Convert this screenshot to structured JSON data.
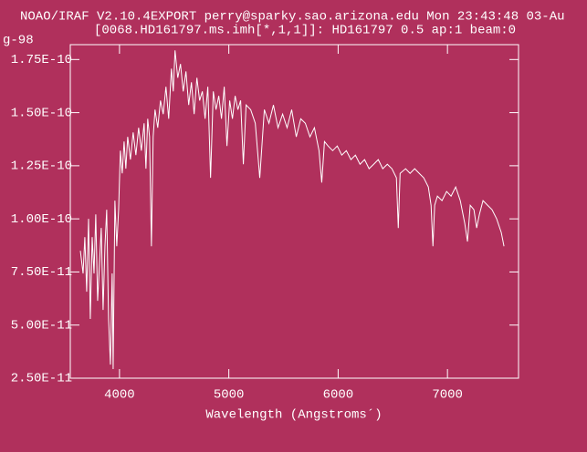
{
  "chart_data": {
    "type": "line",
    "title": "NOAO/IRAF V2.10.4EXPORT perry@sparky.sao.arizona.edu Mon 23:43:48 03-Au",
    "subtitle": "[0068.HD161797.ms.imh[*,1,1]]: HD161797 0.5 ap:1 beam:0",
    "y_label": "g-98",
    "x_label": "Wavelength (Angstroms´)",
    "color": "#ffffff",
    "background": "#b0305c",
    "xlim": [
      3550,
      7650
    ],
    "ylim": [
      2.5e-11,
      1.82e-10
    ],
    "xticks": [
      4000,
      5000,
      6000,
      7000
    ],
    "yticks": [
      {
        "value": 2.5e-11,
        "label": "2.50E-11"
      },
      {
        "value": 5e-11,
        "label": "5.00E-11"
      },
      {
        "value": 7.5e-11,
        "label": "7.50E-11"
      },
      {
        "value": 1e-10,
        "label": "1.00E-10"
      },
      {
        "value": 1.25e-10,
        "label": "1.25E-10"
      },
      {
        "value": 1.5e-10,
        "label": "1.50E-10"
      },
      {
        "value": 1.75e-10,
        "label": "1.75E-10"
      }
    ],
    "x": [
      3642,
      3667,
      3683,
      3700,
      3717,
      3733,
      3750,
      3767,
      3783,
      3800,
      3817,
      3833,
      3850,
      3867,
      3883,
      3900,
      3917,
      3933,
      3942,
      3958,
      3975,
      3992,
      4008,
      4025,
      4042,
      4058,
      4075,
      4100,
      4125,
      4150,
      4175,
      4200,
      4225,
      4242,
      4258,
      4275,
      4292,
      4308,
      4325,
      4350,
      4375,
      4400,
      4425,
      4450,
      4475,
      4492,
      4508,
      4533,
      4558,
      4583,
      4608,
      4633,
      4658,
      4683,
      4708,
      4733,
      4758,
      4783,
      4808,
      4833,
      4858,
      4883,
      4908,
      4933,
      4958,
      4983,
      5008,
      5033,
      5058,
      5083,
      5108,
      5133,
      5158,
      5200,
      5242,
      5283,
      5325,
      5367,
      5408,
      5450,
      5492,
      5533,
      5575,
      5617,
      5658,
      5700,
      5742,
      5783,
      5825,
      5850,
      5875,
      5908,
      5950,
      5992,
      6033,
      6075,
      6117,
      6158,
      6200,
      6242,
      6283,
      6325,
      6367,
      6408,
      6450,
      6492,
      6533,
      6550,
      6567,
      6617,
      6658,
      6700,
      6742,
      6783,
      6825,
      6850,
      6867,
      6883,
      6908,
      6950,
      6992,
      7033,
      7075,
      7117,
      7158,
      7183,
      7208,
      7242,
      7267,
      7292,
      7325,
      7367,
      7408,
      7450,
      7492,
      7517
    ],
    "values": [
      8.5e-11,
      7.43e-11,
      9.14e-11,
      6.57e-11,
      1e-10,
      5.29e-11,
      9.14e-11,
      7.43e-11,
      1.021e-10,
      6.14e-11,
      7.86e-11,
      9.57e-11,
      5.71e-11,
      8.71e-11,
      1.043e-10,
      5.29e-11,
      3.14e-11,
      7.43e-11,
      2.93e-11,
      1.086e-10,
      8.71e-11,
      1.043e-10,
      1.321e-10,
      1.214e-10,
      1.364e-10,
      1.236e-10,
      1.386e-10,
      1.279e-10,
      1.407e-10,
      1.3e-10,
      1.429e-10,
      1.321e-10,
      1.45e-10,
      1.236e-10,
      1.471e-10,
      1.386e-10,
      8.71e-11,
      1.386e-10,
      1.514e-10,
      1.429e-10,
      1.557e-10,
      1.493e-10,
      1.622e-10,
      1.471e-10,
      1.707e-10,
      1.6e-10,
      1.793e-10,
      1.664e-10,
      1.729e-10,
      1.6e-10,
      1.694e-10,
      1.536e-10,
      1.643e-10,
      1.493e-10,
      1.664e-10,
      1.557e-10,
      1.6e-10,
      1.471e-10,
      1.622e-10,
      1.193e-10,
      1.6e-10,
      1.514e-10,
      1.579e-10,
      1.471e-10,
      1.622e-10,
      1.343e-10,
      1.557e-10,
      1.471e-10,
      1.579e-10,
      1.514e-10,
      1.557e-10,
      1.257e-10,
      1.536e-10,
      1.514e-10,
      1.45e-10,
      1.193e-10,
      1.514e-10,
      1.45e-10,
      1.536e-10,
      1.429e-10,
      1.493e-10,
      1.429e-10,
      1.514e-10,
      1.386e-10,
      1.471e-10,
      1.45e-10,
      1.386e-10,
      1.429e-10,
      1.321e-10,
      1.171e-10,
      1.364e-10,
      1.343e-10,
      1.321e-10,
      1.343e-10,
      1.3e-10,
      1.321e-10,
      1.279e-10,
      1.3e-10,
      1.257e-10,
      1.279e-10,
      1.236e-10,
      1.257e-10,
      1.279e-10,
      1.236e-10,
      1.257e-10,
      1.236e-10,
      1.193e-10,
      9.57e-11,
      1.214e-10,
      1.236e-10,
      1.214e-10,
      1.236e-10,
      1.214e-10,
      1.193e-10,
      1.15e-10,
      1.064e-10,
      8.71e-11,
      1.064e-10,
      1.107e-10,
      1.086e-10,
      1.129e-10,
      1.107e-10,
      1.15e-10,
      1.086e-10,
      9.79e-11,
      8.93e-11,
      1.064e-10,
      1.043e-10,
      9.57e-11,
      1.021e-10,
      1.086e-10,
      1.064e-10,
      1.043e-10,
      1e-10,
      9.36e-11,
      8.71e-11
    ]
  }
}
